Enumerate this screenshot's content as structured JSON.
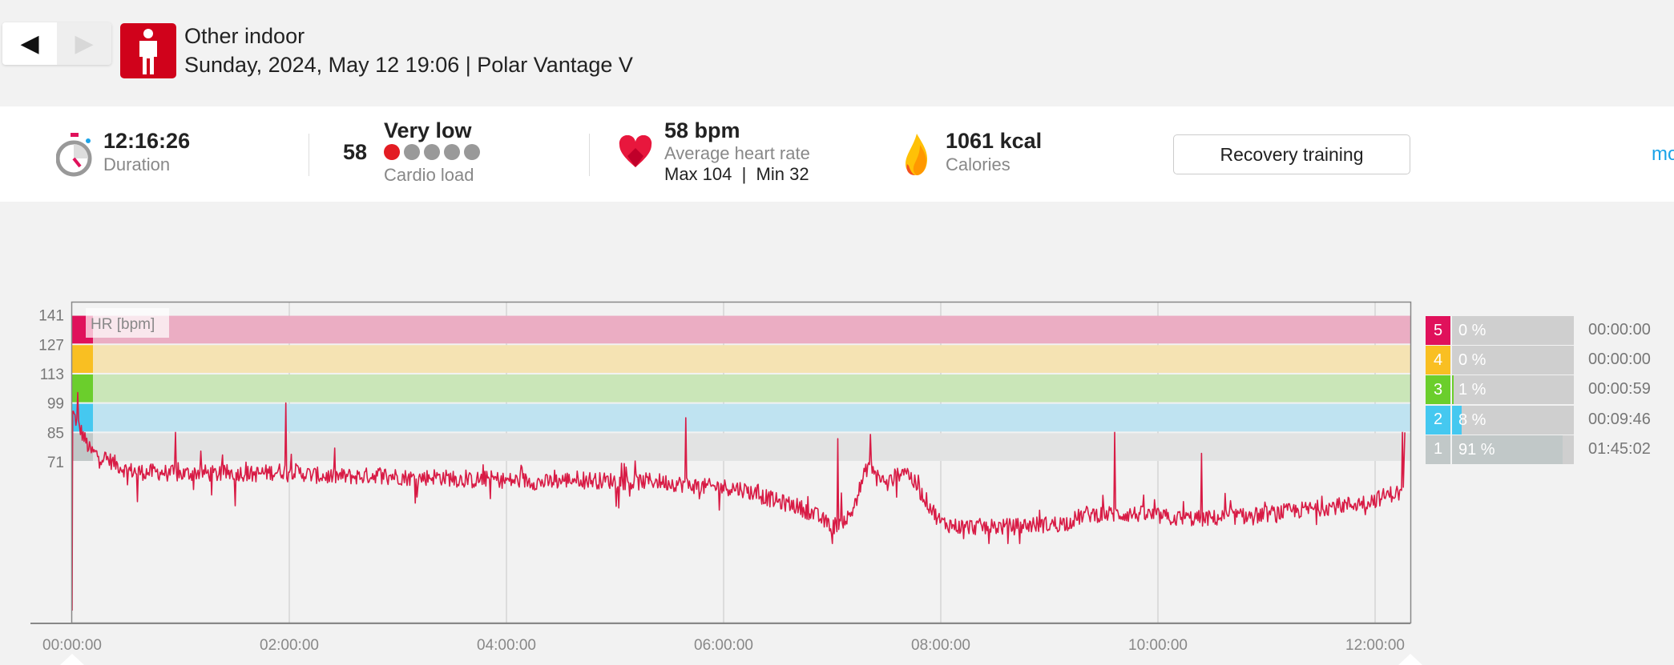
{
  "nav": {
    "prev_icon": "triangle-left-icon",
    "next_icon": "triangle-right-icon"
  },
  "header": {
    "sport_icon": "person-standing-icon",
    "title": "Other indoor",
    "subtitle": "Sunday, 2024, May 12 19:06 | Polar Vantage V"
  },
  "summary": {
    "duration": {
      "value": "12:16:26",
      "label": "Duration",
      "icon": "stopwatch-icon"
    },
    "cardio": {
      "score": "58",
      "level": "Very low",
      "label": "Cardio load",
      "dots_filled": 1,
      "dots_total": 5
    },
    "heart": {
      "value": "58 bpm",
      "label": "Average heart rate",
      "maxmin": "Max 104  |  Min 32",
      "icon": "heart-icon"
    },
    "calories": {
      "value": "1061 kcal",
      "label": "Calories",
      "icon": "flame-icon"
    },
    "benefit_button": "Recovery training",
    "more_link": "mo"
  },
  "colors": {
    "zone5": "#e0115b",
    "zone4": "#f9bf22",
    "zone3": "#6bce2c",
    "zone2": "#45c8f0",
    "zone1": "#c1c8c8",
    "zone5_band": "#ebadc3",
    "zone4_band": "#f5e3b3",
    "zone3_band": "#cae6b8",
    "zone2_band": "#bfe3f1",
    "zone1_band": "#e2e3e3",
    "hr_line": "#d81b45"
  },
  "zones": [
    {
      "zone": "5",
      "percent": "0 %",
      "fraction": 0.0,
      "time": "00:00:00"
    },
    {
      "zone": "4",
      "percent": "0 %",
      "fraction": 0.0,
      "time": "00:00:00"
    },
    {
      "zone": "3",
      "percent": "1 %",
      "fraction": 0.01,
      "time": "00:00:59"
    },
    {
      "zone": "2",
      "percent": "8 %",
      "fraction": 0.08,
      "time": "00:09:46"
    },
    {
      "zone": "1",
      "percent": "91 %",
      "fraction": 0.91,
      "time": "01:45:02"
    }
  ],
  "chart_data": {
    "type": "line",
    "title": "",
    "ylabel": "HR [bpm]",
    "xlabel": "",
    "ylim": [
      -6,
      147
    ],
    "xlim_hours": [
      0,
      12.274
    ],
    "yticks": [
      "141",
      "127",
      "113",
      "99",
      "85",
      "71"
    ],
    "ytick_values": [
      141,
      127,
      113,
      99,
      85,
      71
    ],
    "xticks": [
      "00:00:00",
      "02:00:00",
      "04:00:00",
      "06:00:00",
      "08:00:00",
      "10:00:00",
      "12:00:00"
    ],
    "xtick_hours": [
      0,
      2,
      4,
      6,
      8,
      10,
      12
    ],
    "zone_bounds": [
      141,
      127,
      113,
      99,
      85,
      71
    ],
    "series": [
      {
        "name": "HR",
        "sample_interval_min": 10,
        "values": [
          95,
          76,
          72,
          67,
          66,
          66,
          65,
          66,
          65,
          66,
          65,
          66,
          67,
          65,
          64,
          64,
          64,
          65,
          64,
          63,
          64,
          63,
          62,
          63,
          62,
          62,
          61,
          62,
          63,
          62,
          62,
          61,
          62,
          61,
          60,
          59,
          59,
          58,
          55,
          52,
          50,
          46,
          40,
          45,
          70,
          60,
          68,
          55,
          42,
          40,
          40,
          40,
          40,
          41,
          41,
          42,
          46,
          46,
          46,
          46,
          45,
          44,
          44,
          44,
          45,
          45,
          46,
          47,
          48,
          49,
          50,
          51,
          53,
          56
        ],
        "spikes_hours_bpm": [
          [
            0.05,
            104
          ],
          [
            0.6,
            52
          ],
          [
            0.95,
            85
          ],
          [
            1.5,
            50
          ],
          [
            1.97,
            99
          ],
          [
            5.65,
            92
          ],
          [
            7.0,
            32
          ],
          [
            7.05,
            82
          ],
          [
            7.35,
            84
          ],
          [
            9.6,
            85
          ],
          [
            10.4,
            75
          ],
          [
            12.25,
            85
          ]
        ]
      }
    ]
  }
}
